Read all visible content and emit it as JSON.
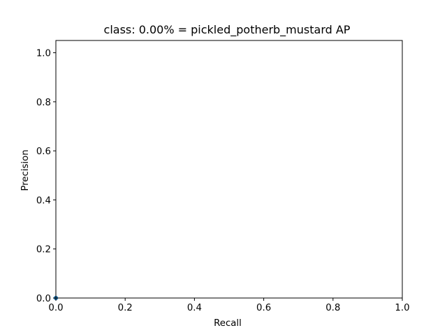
{
  "chart_data": {
    "type": "area",
    "title": "class: 0.00% = pickled_potherb_mustard AP",
    "xlabel": "Recall",
    "ylabel": "Precision",
    "xlim": [
      0.0,
      1.0
    ],
    "ylim": [
      0.0,
      1.05
    ],
    "x_ticks": [
      "0.0",
      "0.2",
      "0.4",
      "0.6",
      "0.8",
      "1.0"
    ],
    "y_ticks": [
      "0.0",
      "0.2",
      "0.4",
      "0.6",
      "0.8",
      "1.0"
    ],
    "grid": false,
    "legend": "none",
    "series": [
      {
        "x": [
          0.0,
          0.0,
          0.0
        ],
        "y": [
          0.0,
          0.0,
          0.0
        ],
        "color": "#1f77b4"
      }
    ]
  }
}
